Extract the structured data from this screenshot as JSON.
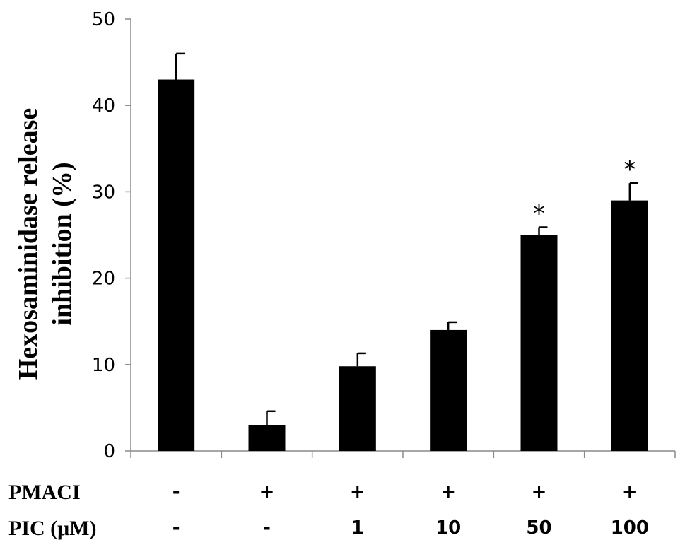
{
  "chart_data": {
    "type": "bar",
    "title": "",
    "xlabel": "",
    "ylabel": [
      "Hexosaminidase release",
      "inhibition (%)"
    ],
    "ylim": [
      0,
      50
    ],
    "yticks": [
      0,
      10,
      20,
      30,
      40,
      50
    ],
    "grid": false,
    "series": [
      {
        "values": [
          43,
          3,
          9.8,
          14,
          25,
          29
        ],
        "errors": [
          3,
          1.6,
          1.5,
          0.9,
          0.9,
          2
        ],
        "color": "#000000"
      }
    ],
    "annotations": [
      "",
      "",
      "",
      "",
      "*",
      "*"
    ],
    "condition_rows": [
      {
        "label": "PMACI",
        "values": [
          "-",
          "+",
          "+",
          "+",
          "+",
          "+"
        ]
      },
      {
        "label": "PIC  (μM)",
        "values": [
          "-",
          "-",
          "1",
          "10",
          "50",
          "100"
        ]
      }
    ]
  }
}
